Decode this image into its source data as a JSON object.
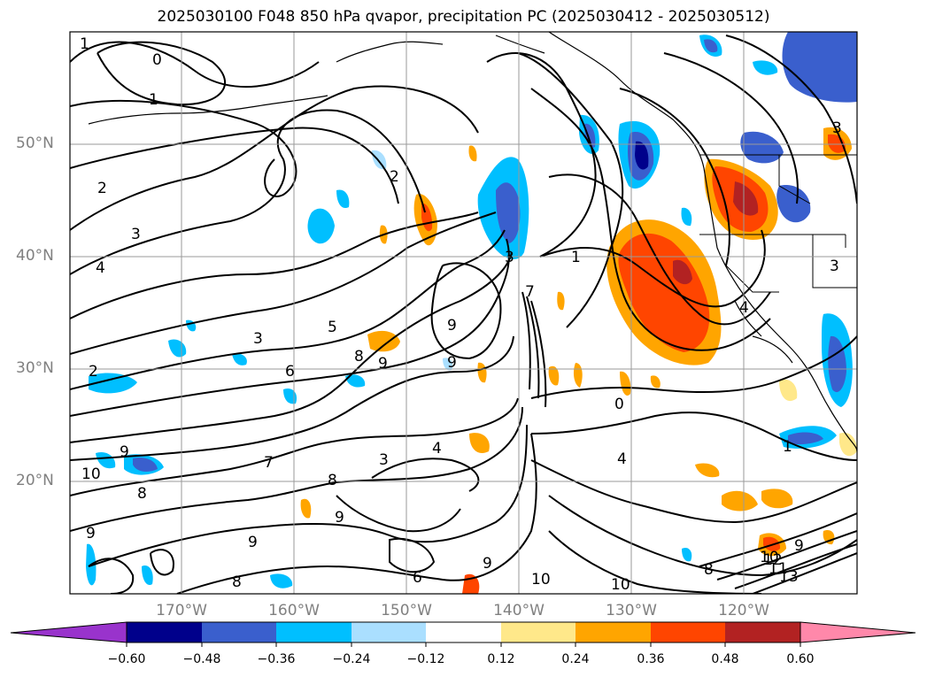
{
  "title": "2025030100 F048 850 hPa qvapor, precipitation PC (2025030412 - 2025030512)",
  "map": {
    "lat_labels": [
      "50°N",
      "40°N",
      "30°N",
      "20°N"
    ],
    "lon_labels": [
      "170°W",
      "160°W",
      "150°W",
      "140°W",
      "130°W",
      "120°W"
    ],
    "contour_labels": [
      "1",
      "0",
      "1",
      "2",
      "3",
      "4",
      "2",
      "3",
      "2",
      "5",
      "6",
      "7",
      "8",
      "9",
      "9",
      "9",
      "4",
      "3",
      "3",
      "1",
      "0",
      "4",
      "8",
      "9",
      "10",
      "9",
      "9",
      "10",
      "9",
      "8",
      "6",
      "10",
      "10",
      "8",
      "11",
      "12",
      "13",
      "9",
      "1",
      "3",
      "4",
      "3",
      "7",
      "8",
      "9"
    ]
  },
  "colorbar": {
    "ticks": [
      "−0.60",
      "−0.48",
      "−0.36",
      "−0.24",
      "−0.12",
      "0.12",
      "0.24",
      "0.36",
      "0.48",
      "0.60"
    ],
    "colors": [
      "#9933cc",
      "#00008b",
      "#3a5fcd",
      "#00bfff",
      "#aadfff",
      "#ffffff",
      "#ffe88a",
      "#ffa500",
      "#ff4500",
      "#b22222",
      "#ff88aa"
    ]
  }
}
